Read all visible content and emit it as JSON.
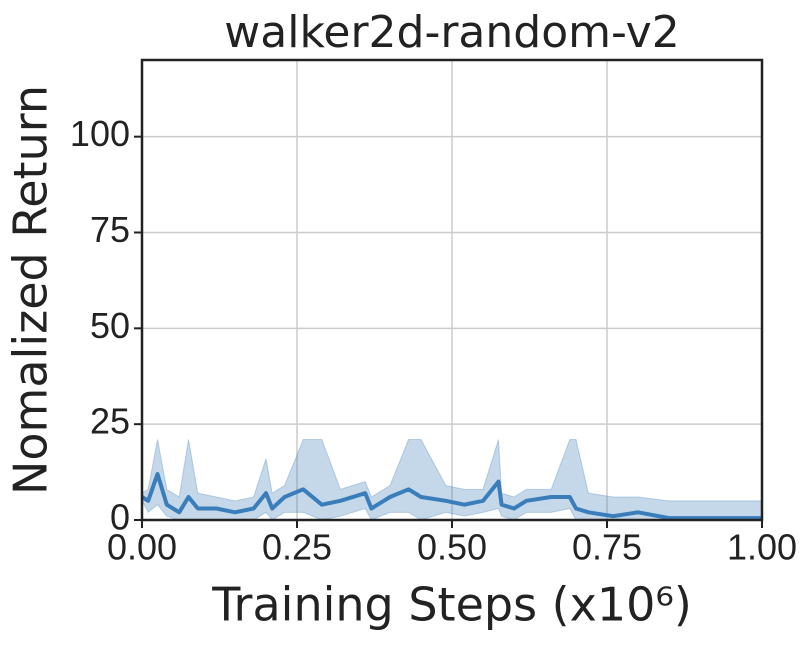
{
  "chart_data": {
    "type": "line",
    "title": "walker2d-random-v2",
    "xlabel": "Training Steps (x10⁶)",
    "ylabel": "Nomalized Return",
    "x": [
      0,
      0.01,
      0.025,
      0.04,
      0.06,
      0.075,
      0.09,
      0.12,
      0.15,
      0.18,
      0.2,
      0.21,
      0.23,
      0.26,
      0.29,
      0.32,
      0.36,
      0.37,
      0.4,
      0.43,
      0.45,
      0.49,
      0.52,
      0.55,
      0.575,
      0.58,
      0.6,
      0.62,
      0.66,
      0.69,
      0.7,
      0.72,
      0.76,
      0.8,
      0.85,
      0.9,
      0.95,
      1.0
    ],
    "values": [
      6,
      5,
      12,
      4,
      2,
      6,
      3,
      3,
      2,
      3,
      7,
      3,
      6,
      8,
      4,
      5,
      7,
      3,
      6,
      8,
      6,
      5,
      4,
      5,
      10,
      4,
      3,
      5,
      6,
      6,
      3,
      2,
      1,
      2,
      0.5,
      0.5,
      0.5,
      0.5
    ],
    "upper": [
      7,
      8,
      21,
      8,
      6,
      21,
      7,
      6,
      5,
      6,
      16,
      7,
      9,
      21,
      21,
      8,
      10,
      6,
      9,
      21,
      21,
      9,
      8,
      8,
      21,
      7,
      6,
      8,
      8,
      21,
      21,
      7,
      6,
      6,
      5,
      5,
      5,
      5
    ],
    "lower": [
      5,
      2,
      4,
      1,
      0,
      0,
      0,
      0,
      0,
      0,
      2,
      0,
      2,
      2,
      0,
      1,
      3,
      0,
      2,
      2,
      0,
      2,
      1,
      2,
      3,
      1,
      0,
      2,
      2,
      3,
      0,
      0,
      0,
      0,
      0,
      0,
      0,
      0
    ],
    "color": "#3a7dbb",
    "xlim": [
      0,
      1
    ],
    "ylim": [
      0,
      120
    ],
    "xticks": [
      {
        "value": 0,
        "label": "0.00"
      },
      {
        "value": 0.25,
        "label": "0.25"
      },
      {
        "value": 0.5,
        "label": "0.50"
      },
      {
        "value": 0.75,
        "label": "0.75"
      },
      {
        "value": 1,
        "label": "1.00"
      }
    ],
    "yticks": [
      0,
      25,
      50,
      75,
      100
    ],
    "grid": true
  }
}
